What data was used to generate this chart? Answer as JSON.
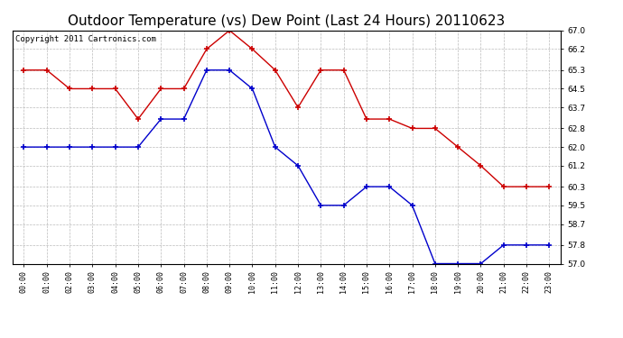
{
  "title": "Outdoor Temperature (vs) Dew Point (Last 24 Hours) 20110623",
  "copyright_text": "Copyright 2011 Cartronics.com",
  "hours": [
    "00:00",
    "01:00",
    "02:00",
    "03:00",
    "04:00",
    "05:00",
    "06:00",
    "07:00",
    "08:00",
    "09:00",
    "10:00",
    "11:00",
    "12:00",
    "13:00",
    "14:00",
    "15:00",
    "16:00",
    "17:00",
    "18:00",
    "19:00",
    "20:00",
    "21:00",
    "22:00",
    "23:00"
  ],
  "temp_red": [
    65.3,
    65.3,
    64.5,
    64.5,
    64.5,
    63.2,
    64.5,
    64.5,
    66.2,
    67.0,
    66.2,
    65.3,
    63.7,
    65.3,
    65.3,
    63.2,
    63.2,
    62.8,
    62.8,
    62.0,
    61.2,
    60.3,
    60.3,
    60.3
  ],
  "dew_blue": [
    62.0,
    62.0,
    62.0,
    62.0,
    62.0,
    62.0,
    63.2,
    63.2,
    65.3,
    65.3,
    64.5,
    62.0,
    61.2,
    59.5,
    59.5,
    60.3,
    60.3,
    59.5,
    57.0,
    57.0,
    57.0,
    57.8,
    57.8,
    57.8
  ],
  "ylim": [
    57.0,
    67.0
  ],
  "yticks": [
    57.0,
    57.8,
    58.7,
    59.5,
    60.3,
    61.2,
    62.0,
    62.8,
    63.7,
    64.5,
    65.3,
    66.2,
    67.0
  ],
  "red_color": "#cc0000",
  "blue_color": "#0000cc",
  "bg_color": "#ffffff",
  "plot_bg_color": "#ffffff",
  "grid_color": "#bbbbbb",
  "title_fontsize": 11,
  "copyright_fontsize": 6.5
}
